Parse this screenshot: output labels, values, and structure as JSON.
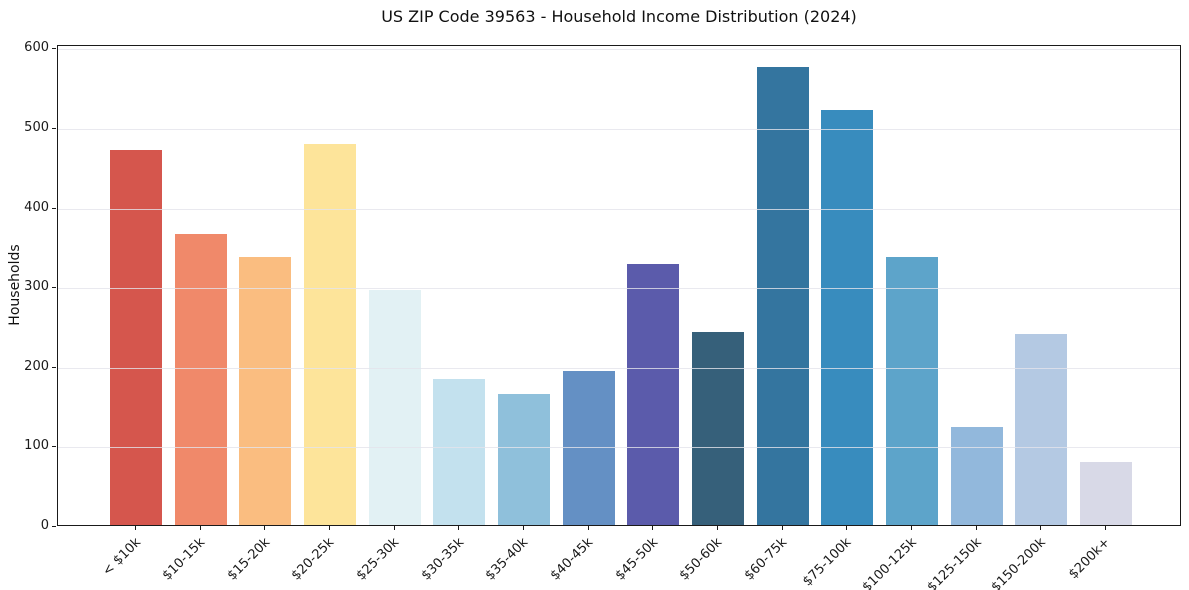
{
  "chart_data": {
    "type": "bar",
    "title": "US ZIP Code 39563 - Household Income Distribution (2024)",
    "xlabel": "",
    "ylabel": "Households",
    "categories": [
      "< $10k",
      "$10-15k",
      "$15-20k",
      "$20-25k",
      "$25-30k",
      "$30-35k",
      "$35-40k",
      "$40-45k",
      "$45-50k",
      "$50-60k",
      "$60-75k",
      "$75-100k",
      "$100-125k",
      "$125-150k",
      "$150-200k",
      "$200k+"
    ],
    "values": [
      471,
      366,
      336,
      479,
      295,
      184,
      164,
      193,
      328,
      243,
      575,
      521,
      337,
      123,
      240,
      79
    ],
    "bar_colors": [
      "#d5564d",
      "#f0896a",
      "#fabd80",
      "#fde49a",
      "#e2f1f4",
      "#c3e1ee",
      "#8fc0db",
      "#6490c4",
      "#5b5bab",
      "#36607a",
      "#34759f",
      "#388cbe",
      "#5da4ca",
      "#92b8dc",
      "#b4c9e3",
      "#d8d9e7"
    ],
    "ylim": [
      0,
      604
    ],
    "yticks": [
      0,
      100,
      200,
      300,
      400,
      500,
      600
    ],
    "grid": "horizontal-only",
    "legend": "none",
    "x_tick_rotation_deg": 45,
    "background": "#ffffff",
    "spine_color": "#1a1a1a",
    "grid_color": "#e4e4eb",
    "text_color": "#1a1a1a"
  }
}
